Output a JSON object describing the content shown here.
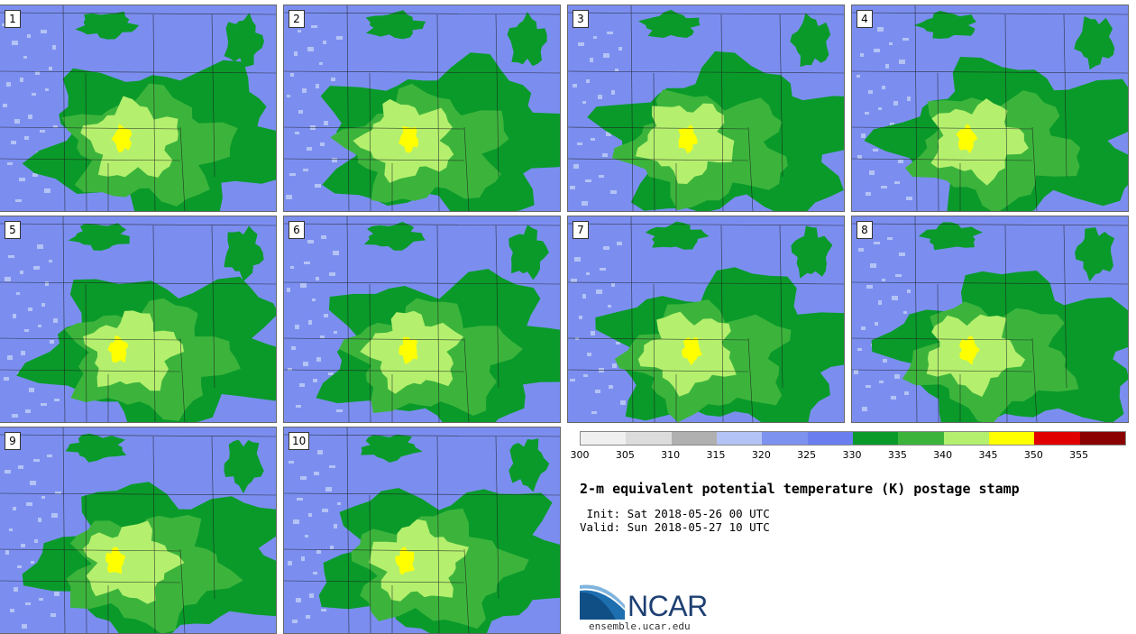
{
  "panels": [
    {
      "label": "1"
    },
    {
      "label": "2"
    },
    {
      "label": "3"
    },
    {
      "label": "4"
    },
    {
      "label": "5"
    },
    {
      "label": "6"
    },
    {
      "label": "7"
    },
    {
      "label": "8"
    },
    {
      "label": "9"
    },
    {
      "label": "10"
    }
  ],
  "colorbar": {
    "colors": [
      "#f0f0f0",
      "#dcdcdc",
      "#b0b0b0",
      "#b4c3f5",
      "#7d92ee",
      "#6a7ef0",
      "#0a9a2a",
      "#3cb43c",
      "#b4f06e",
      "#ffff00",
      "#e00000",
      "#8b0000"
    ],
    "ticks": [
      "300",
      "305",
      "310",
      "315",
      "320",
      "325",
      "330",
      "335",
      "340",
      "345",
      "350",
      "355"
    ]
  },
  "title": "2-m equivalent potential temperature (K) postage stamp",
  "init_line": " Init: Sat 2018-05-26 00 UTC",
  "valid_line": "Valid: Sun 2018-05-27 10 UTC",
  "logo": {
    "text": "NCAR",
    "url": "ensemble.ucar.edu"
  },
  "map_colors": {
    "light": "#b4c3f5",
    "base": "#7b8ef0",
    "deep_green": "#0a9a2a",
    "mid_green": "#3cb43c",
    "light_green": "#b4f06e",
    "yellow": "#ffff00",
    "border": "#1a1a1a"
  }
}
